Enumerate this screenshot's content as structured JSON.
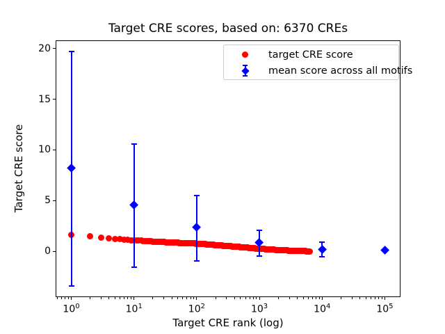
{
  "chart_data": {
    "type": "scatter",
    "title": "Target CRE scores, based on: 6370 CREs",
    "xlabel": "Target CRE rank (log)",
    "ylabel": "Target CRE score",
    "x_scale": "log",
    "x_log_range": [
      -0.25,
      5.25
    ],
    "ylim": [
      -4.52,
      20.81
    ],
    "x_tick_base": "10",
    "x_tick_exponents": [
      0,
      1,
      2,
      3,
      4,
      5
    ],
    "y_ticks": [
      "0",
      "5",
      "10",
      "15",
      "20"
    ],
    "n_cres": 6370,
    "legend_position": "upper right",
    "grid": false,
    "series": [
      {
        "name": "target CRE score",
        "color": "#ff0000",
        "marker": "circle",
        "marker_size_px": 9,
        "rank_range": [
          1,
          6370
        ],
        "anchors": [
          [
            1,
            1.65
          ],
          [
            2,
            1.5
          ],
          [
            3,
            1.35
          ],
          [
            4,
            1.27
          ],
          [
            5,
            1.22
          ],
          [
            6,
            1.18
          ],
          [
            8,
            1.13
          ],
          [
            10,
            1.09
          ],
          [
            15,
            1.02
          ],
          [
            20,
            0.97
          ],
          [
            30,
            0.91
          ],
          [
            50,
            0.84
          ],
          [
            70,
            0.8
          ],
          [
            100,
            0.76
          ],
          [
            150,
            0.68
          ],
          [
            200,
            0.62
          ],
          [
            300,
            0.53
          ],
          [
            500,
            0.42
          ],
          [
            700,
            0.34
          ],
          [
            1000,
            0.25
          ],
          [
            1500,
            0.18
          ],
          [
            2000,
            0.13
          ],
          [
            3000,
            0.07
          ],
          [
            4000,
            0.04
          ],
          [
            5000,
            0.02
          ],
          [
            6370,
            0.0
          ]
        ]
      },
      {
        "name": "mean score across all motifs",
        "color": "#0000ff",
        "marker": "diamond",
        "marker_size_px": 13,
        "points": [
          {
            "rank": 1,
            "mean": 8.2,
            "err_low": -3.4,
            "err_high": 19.7
          },
          {
            "rank": 10,
            "mean": 4.55,
            "err_low": -1.6,
            "err_high": 10.6
          },
          {
            "rank": 100,
            "mean": 2.35,
            "err_low": -0.95,
            "err_high": 5.5
          },
          {
            "rank": 1000,
            "mean": 0.85,
            "err_low": -0.5,
            "err_high": 2.05
          },
          {
            "rank": 10000,
            "mean": 0.2,
            "err_low": -0.55,
            "err_high": 0.9
          },
          {
            "rank": 100000,
            "mean": 0.1,
            "err_low": 0.1,
            "err_high": 0.1
          }
        ]
      }
    ]
  }
}
